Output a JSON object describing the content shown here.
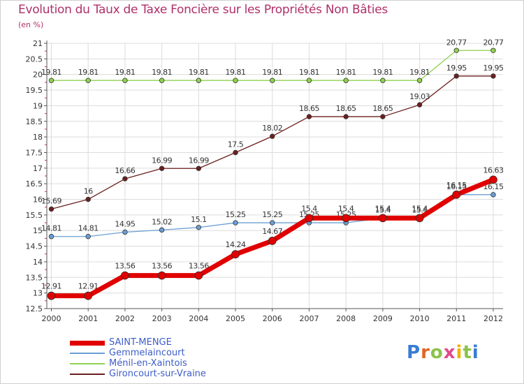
{
  "title": "Evolution du Taux de Taxe Foncière sur les Propriétés Non Bâties",
  "unit_label": "(en %)",
  "logo": {
    "text": "Proxiti",
    "letter_colors": [
      "#3a7bd5",
      "#e0662a",
      "#8bc34a",
      "#e04a8a",
      "#f0b400",
      "#8bc34a",
      "#3a7bd5"
    ]
  },
  "chart_data": {
    "type": "line",
    "categories": [
      "2000",
      "2001",
      "2002",
      "2003",
      "2004",
      "2005",
      "2006",
      "2007",
      "2008",
      "2009",
      "2010",
      "2011",
      "2012"
    ],
    "ylim": [
      12.5,
      21
    ],
    "yticks": [
      "12.5",
      "13",
      "13.5",
      "14",
      "14.5",
      "15",
      "15.5",
      "16",
      "16.5",
      "17",
      "17.5",
      "18",
      "18.5",
      "19",
      "19.5",
      "20",
      "20.5",
      "21"
    ],
    "grid": true,
    "legend_position": "bottom-left",
    "series": [
      {
        "name": "Ménil-en-Xaintois",
        "color": "#8fd14f",
        "width": 1.3,
        "marker": 3.3,
        "values": [
          19.81,
          19.81,
          19.81,
          19.81,
          19.81,
          19.81,
          19.81,
          19.81,
          19.81,
          19.81,
          19.81,
          20.77,
          20.77
        ],
        "labels": [
          "19.81",
          "19.81",
          "19.81",
          "19.81",
          "19.81",
          "19.81",
          "19.81",
          "19.81",
          "19.81",
          "19.81",
          "19.81",
          "20.77",
          "20.77"
        ]
      },
      {
        "name": "Gironcourt-sur-Vraine",
        "color": "#6b1f1f",
        "width": 1.3,
        "marker": 3.3,
        "values": [
          15.69,
          16,
          16.66,
          16.99,
          16.99,
          17.5,
          18.02,
          18.65,
          18.65,
          18.65,
          19.03,
          19.95,
          19.95
        ],
        "labels": [
          "15.69",
          "16",
          "16.66",
          "16.99",
          "16.99",
          "17.5",
          "18.02",
          "18.65",
          "18.65",
          "18.65",
          "19.03",
          "19.95",
          "19.95"
        ]
      },
      {
        "name": "Gemmelaincourt",
        "color": "#6a9fd4",
        "width": 1.3,
        "marker": 3.3,
        "values": [
          14.81,
          14.81,
          14.95,
          15.02,
          15.1,
          15.25,
          15.25,
          15.25,
          15.25,
          15.4,
          15.4,
          16.15,
          16.15
        ],
        "labels": [
          "14.81",
          "14.81",
          "14.95",
          "15.02",
          "15.1",
          "15.25",
          "15.25",
          "15.25",
          "15.25",
          "15.4",
          "15.4",
          "16.15",
          "16.15"
        ]
      },
      {
        "name": "SAINT-MENGE",
        "color": "#e00000",
        "width": 7,
        "marker": 5.5,
        "values": [
          12.91,
          12.91,
          13.56,
          13.56,
          13.56,
          14.24,
          14.67,
          15.4,
          15.4,
          15.4,
          15.4,
          16.15,
          16.63
        ],
        "labels": [
          "12.91",
          "12.91",
          "13.56",
          "13.56",
          "13.56",
          "14.24",
          "14.67",
          "15.4",
          "15.4",
          "15.4",
          "15.4",
          "16.15",
          "16.63"
        ]
      }
    ],
    "legend": [
      {
        "name": "SAINT-MENGE",
        "color": "#e00000",
        "width": 7
      },
      {
        "name": "Gemmelaincourt",
        "color": "#6a9fd4",
        "width": 1.5
      },
      {
        "name": "Ménil-en-Xaintois",
        "color": "#8fd14f",
        "width": 1.5
      },
      {
        "name": "Gironcourt-sur-Vraine",
        "color": "#6b1f1f",
        "width": 1.5
      }
    ]
  }
}
